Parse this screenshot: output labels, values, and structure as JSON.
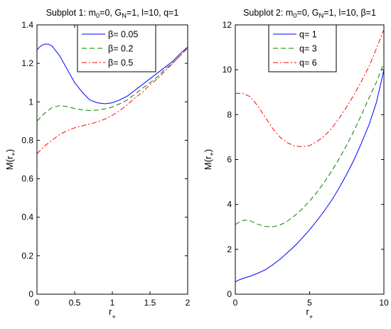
{
  "chart_data": [
    {
      "type": "line",
      "title": {
        "pre": "Subplot 1: m",
        "s1": "0",
        "mid1": "=0, G",
        "s2": "N",
        "post": "=1, l=10, q=1"
      },
      "xlabel": {
        "main": "r",
        "sub": "+"
      },
      "ylabel": {
        "main": "M(r",
        "sub": "+",
        "close": ")"
      },
      "xlim": [
        0,
        2
      ],
      "ylim": [
        0,
        1.4
      ],
      "xticks": [
        "0",
        "0.5",
        "1",
        "1.5",
        "2"
      ],
      "yticks": [
        "0",
        "0.2",
        "0.4",
        "0.6",
        "0.8",
        "1",
        "1.2",
        "1.4"
      ],
      "grid": false,
      "legend_position": "top-center",
      "series": [
        {
          "name": "β= 0.05",
          "color": "#0000ff",
          "dash": "solid",
          "points": [
            [
              0,
              1.27
            ],
            [
              0.05,
              1.29
            ],
            [
              0.1,
              1.3
            ],
            [
              0.15,
              1.3
            ],
            [
              0.2,
              1.29
            ],
            [
              0.3,
              1.24
            ],
            [
              0.4,
              1.17
            ],
            [
              0.5,
              1.1
            ],
            [
              0.6,
              1.05
            ],
            [
              0.7,
              1.01
            ],
            [
              0.8,
              0.995
            ],
            [
              0.9,
              0.99
            ],
            [
              1.0,
              0.995
            ],
            [
              1.1,
              1.01
            ],
            [
              1.2,
              1.03
            ],
            [
              1.3,
              1.06
            ],
            [
              1.4,
              1.09
            ],
            [
              1.5,
              1.12
            ],
            [
              1.6,
              1.15
            ],
            [
              1.7,
              1.18
            ],
            [
              1.8,
              1.21
            ],
            [
              1.9,
              1.25
            ],
            [
              2.0,
              1.285
            ]
          ]
        },
        {
          "name": "β= 0.2",
          "color": "#008000",
          "dash": "dashed",
          "points": [
            [
              0,
              0.9
            ],
            [
              0.05,
              0.92
            ],
            [
              0.1,
              0.94
            ],
            [
              0.2,
              0.97
            ],
            [
              0.3,
              0.98
            ],
            [
              0.4,
              0.975
            ],
            [
              0.5,
              0.965
            ],
            [
              0.6,
              0.958
            ],
            [
              0.7,
              0.955
            ],
            [
              0.8,
              0.957
            ],
            [
              0.9,
              0.963
            ],
            [
              1.0,
              0.973
            ],
            [
              1.1,
              0.99
            ],
            [
              1.2,
              1.01
            ],
            [
              1.3,
              1.04
            ],
            [
              1.4,
              1.07
            ],
            [
              1.5,
              1.1
            ],
            [
              1.6,
              1.13
            ],
            [
              1.7,
              1.17
            ],
            [
              1.8,
              1.2
            ],
            [
              1.9,
              1.24
            ],
            [
              2.0,
              1.28
            ]
          ]
        },
        {
          "name": "β= 0.5",
          "color": "#ff0000",
          "dash": "dashdot",
          "points": [
            [
              0,
              0.73
            ],
            [
              0.05,
              0.75
            ],
            [
              0.1,
              0.77
            ],
            [
              0.2,
              0.8
            ],
            [
              0.3,
              0.83
            ],
            [
              0.4,
              0.85
            ],
            [
              0.5,
              0.865
            ],
            [
              0.6,
              0.875
            ],
            [
              0.7,
              0.885
            ],
            [
              0.8,
              0.895
            ],
            [
              0.9,
              0.91
            ],
            [
              1.0,
              0.93
            ],
            [
              1.1,
              0.955
            ],
            [
              1.2,
              0.985
            ],
            [
              1.3,
              1.02
            ],
            [
              1.4,
              1.05
            ],
            [
              1.5,
              1.09
            ],
            [
              1.6,
              1.12
            ],
            [
              1.7,
              1.16
            ],
            [
              1.8,
              1.2
            ],
            [
              1.9,
              1.24
            ],
            [
              2.0,
              1.28
            ]
          ]
        }
      ]
    },
    {
      "type": "line",
      "title": {
        "pre": "Subplot 2: m",
        "s1": "0",
        "mid1": "=0, G",
        "s2": "N",
        "post": "=1, l=10, β=1"
      },
      "xlabel": {
        "main": "r",
        "sub": "+"
      },
      "ylabel": {
        "main": "M(r",
        "sub": "+",
        "close": ")"
      },
      "xlim": [
        0,
        10
      ],
      "ylim": [
        0,
        12
      ],
      "xticks": [
        "0",
        "5",
        "10"
      ],
      "yticks": [
        "0",
        "2",
        "4",
        "6",
        "8",
        "10",
        "12"
      ],
      "grid": false,
      "legend_position": "top-center",
      "series": [
        {
          "name": "q= 1",
          "color": "#0000ff",
          "dash": "solid",
          "points": [
            [
              0,
              0.55
            ],
            [
              0.3,
              0.65
            ],
            [
              0.6,
              0.72
            ],
            [
              1,
              0.8
            ],
            [
              1.5,
              0.93
            ],
            [
              2,
              1.08
            ],
            [
              2.5,
              1.3
            ],
            [
              3,
              1.55
            ],
            [
              3.5,
              1.85
            ],
            [
              4,
              2.15
            ],
            [
              4.5,
              2.5
            ],
            [
              5,
              2.87
            ],
            [
              5.5,
              3.28
            ],
            [
              6,
              3.72
            ],
            [
              6.5,
              4.2
            ],
            [
              7,
              4.75
            ],
            [
              7.5,
              5.35
            ],
            [
              8,
              6.0
            ],
            [
              8.5,
              6.75
            ],
            [
              9,
              7.55
            ],
            [
              9.5,
              8.55
            ],
            [
              10,
              10.0
            ]
          ]
        },
        {
          "name": "q= 3",
          "color": "#008000",
          "dash": "dashed",
          "points": [
            [
              0,
              3.1
            ],
            [
              0.3,
              3.22
            ],
            [
              0.6,
              3.3
            ],
            [
              1,
              3.27
            ],
            [
              1.5,
              3.12
            ],
            [
              2,
              3.02
            ],
            [
              2.5,
              3.0
            ],
            [
              3,
              3.08
            ],
            [
              3.5,
              3.25
            ],
            [
              4,
              3.5
            ],
            [
              4.5,
              3.8
            ],
            [
              5,
              4.15
            ],
            [
              5.5,
              4.55
            ],
            [
              6,
              5.0
            ],
            [
              6.5,
              5.5
            ],
            [
              7,
              6.05
            ],
            [
              7.5,
              6.65
            ],
            [
              8,
              7.3
            ],
            [
              8.5,
              8.0
            ],
            [
              9,
              8.75
            ],
            [
              9.5,
              9.45
            ],
            [
              10,
              10.3
            ]
          ]
        },
        {
          "name": "q= 6",
          "color": "#ff0000",
          "dash": "dashdot",
          "points": [
            [
              0,
              8.95
            ],
            [
              0.5,
              8.95
            ],
            [
              1,
              8.8
            ],
            [
              1.5,
              8.4
            ],
            [
              2,
              7.9
            ],
            [
              2.5,
              7.4
            ],
            [
              3,
              7.0
            ],
            [
              3.5,
              6.75
            ],
            [
              4,
              6.6
            ],
            [
              4.5,
              6.57
            ],
            [
              5,
              6.62
            ],
            [
              5.5,
              6.8
            ],
            [
              6,
              7.05
            ],
            [
              6.5,
              7.4
            ],
            [
              7,
              7.85
            ],
            [
              7.5,
              8.35
            ],
            [
              8,
              8.9
            ],
            [
              8.5,
              9.5
            ],
            [
              9,
              10.15
            ],
            [
              9.5,
              10.95
            ],
            [
              10,
              11.8
            ]
          ]
        }
      ]
    }
  ]
}
